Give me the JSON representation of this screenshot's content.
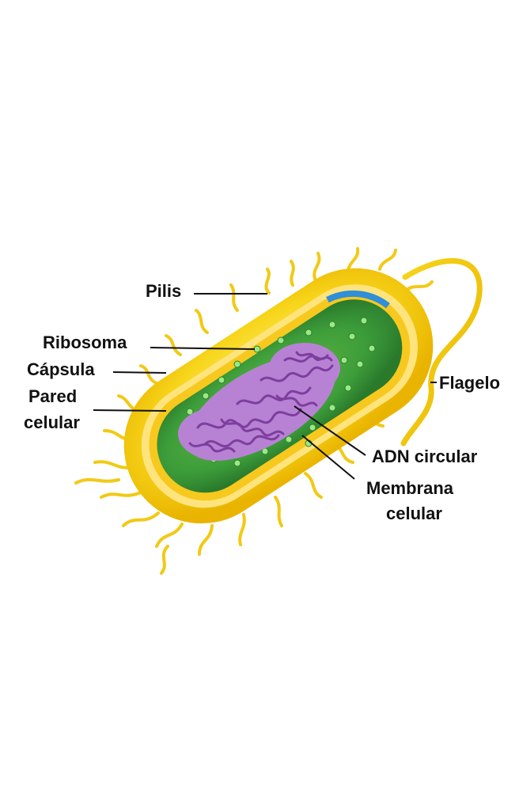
{
  "labels": {
    "pilis": "Pilis",
    "ribosoma": "Ribosoma",
    "capsula": "Cápsula",
    "pared_line1": "Pared",
    "pared_line2": "celular",
    "flagelo": "Flagelo",
    "adn": "ADN circular",
    "membrana_line1": "Membrana",
    "membrana_line2": "celular"
  },
  "colors": {
    "capsule": "#f5d20a",
    "cell_wall": "#ffe37a",
    "cytoplasm": "#3a9b3a",
    "dna": "#a25fc0",
    "ribosome": "#8fe07a",
    "membrane_edge": "#2f8fd8",
    "label_text": "#111111"
  }
}
